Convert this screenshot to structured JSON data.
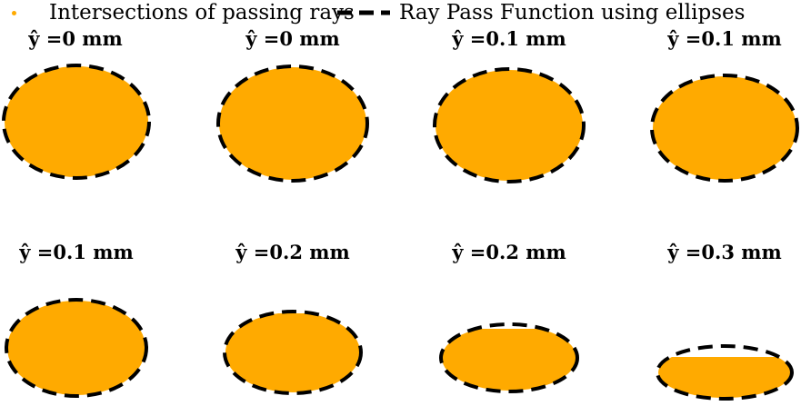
{
  "legend": {
    "rays_label": "Intersections of passing rays",
    "ellipse_label": "Ray Pass Function using ellipses"
  },
  "colors": {
    "rays": "#FFAA00",
    "ellipse": "#000000",
    "background": "#FFFFFF"
  },
  "chart_data": {
    "type": "scatter",
    "layout": "2x4 small multiples",
    "series": [
      {
        "name": "Intersections of passing rays",
        "style": "orange filled points"
      },
      {
        "name": "Ray Pass Function using ellipses",
        "style": "black dashed ellipse outline"
      }
    ],
    "panels": [
      {
        "title": "ŷ =0 mm",
        "y_hat_mm": 0.0
      },
      {
        "title": "ŷ =0 mm",
        "y_hat_mm": 0.0
      },
      {
        "title": "ŷ =0.1 mm",
        "y_hat_mm": 0.1
      },
      {
        "title": "ŷ =0.1 mm",
        "y_hat_mm": 0.1
      },
      {
        "title": "ŷ =0.1 mm",
        "y_hat_mm": 0.1
      },
      {
        "title": "ŷ =0.2 mm",
        "y_hat_mm": 0.2
      },
      {
        "title": "ŷ =0.2 mm",
        "y_hat_mm": 0.2
      },
      {
        "title": "ŷ =0.3 mm",
        "y_hat_mm": 0.3
      }
    ]
  }
}
